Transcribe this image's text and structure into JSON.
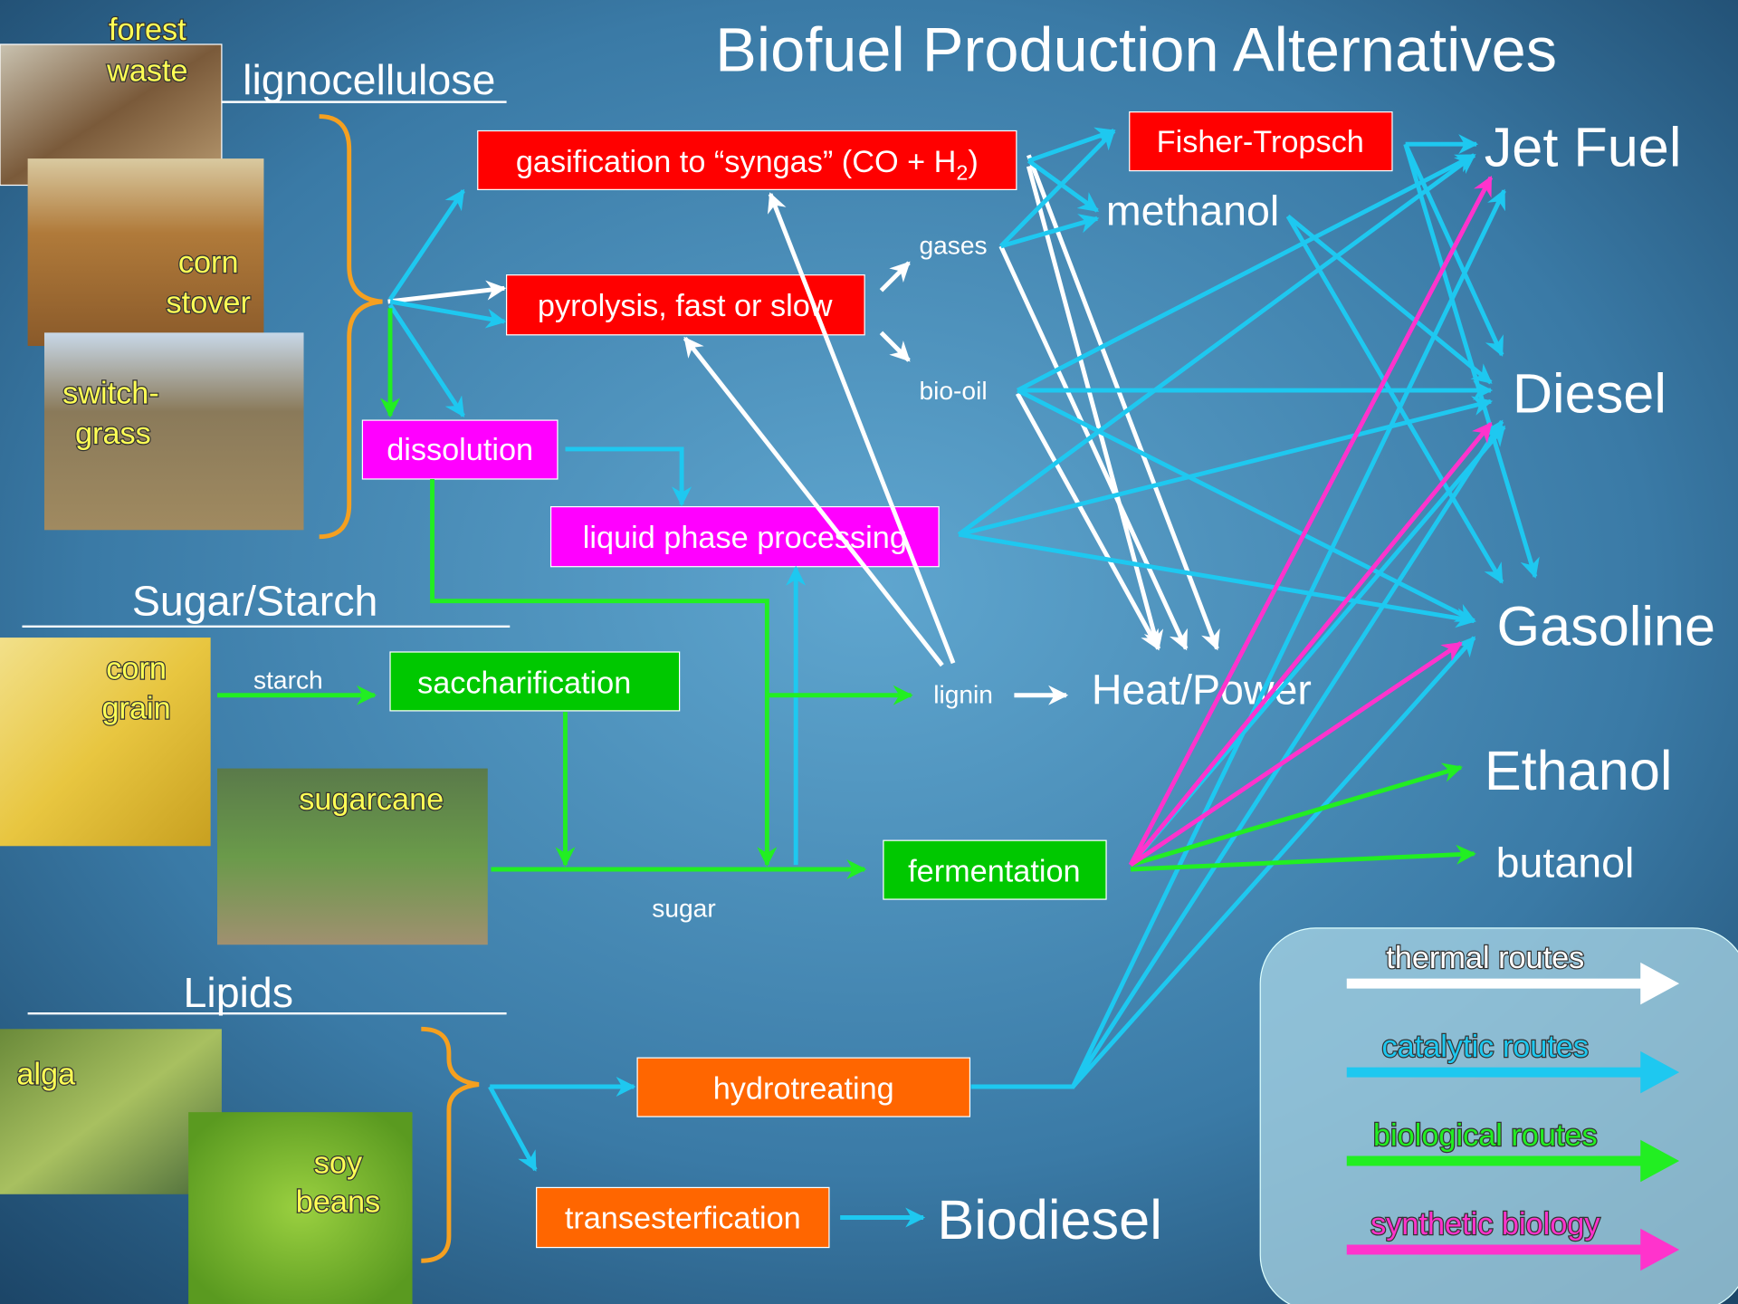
{
  "title": "Biofuel Production Alternatives",
  "feedstocks": {
    "lignocellulose": {
      "heading": "lignocellulose",
      "items": [
        [
          "forest",
          "waste"
        ],
        [
          "corn",
          "stover"
        ],
        [
          "switch-",
          "grass"
        ]
      ]
    },
    "sugar_starch": {
      "heading": "Sugar/Starch",
      "items": [
        [
          "corn",
          "grain"
        ],
        [
          "sugarcane"
        ]
      ]
    },
    "lipids": {
      "heading": "Lipids",
      "items": [
        [
          "alga"
        ],
        [
          "soy",
          "beans"
        ]
      ]
    }
  },
  "processes": {
    "gasification": {
      "text": "gasification to “syngas” (CO + H",
      "subscript": "2",
      "suffix": ")"
    },
    "pyrolysis": "pyrolysis, fast or slow",
    "dissolution": "dissolution",
    "liquid_phase": "liquid phase processing",
    "fisher_tropsch": "Fisher-Tropsch",
    "saccharification": "saccharification",
    "fermentation": "fermentation",
    "hydrotreating": "hydrotreating",
    "transesterfication": "transesterfication"
  },
  "intermediates": {
    "gases": "gases",
    "bio_oil": "bio-oil",
    "lignin": "lignin",
    "sugar": "sugar",
    "starch": "starch",
    "methanol": "methanol"
  },
  "products": {
    "jet_fuel": "Jet Fuel",
    "diesel": "Diesel",
    "gasoline": "Gasoline",
    "ethanol": "Ethanol",
    "butanol": "butanol",
    "heat_power": "Heat/Power",
    "biodiesel": "Biodiesel"
  },
  "legend": [
    {
      "label": "thermal routes",
      "color": "#ffffff"
    },
    {
      "label": "catalytic routes",
      "color": "#1ec8f0"
    },
    {
      "label": "biological routes",
      "color": "#22ee22"
    },
    {
      "label": "synthetic biology",
      "color": "#ff33cc"
    }
  ]
}
